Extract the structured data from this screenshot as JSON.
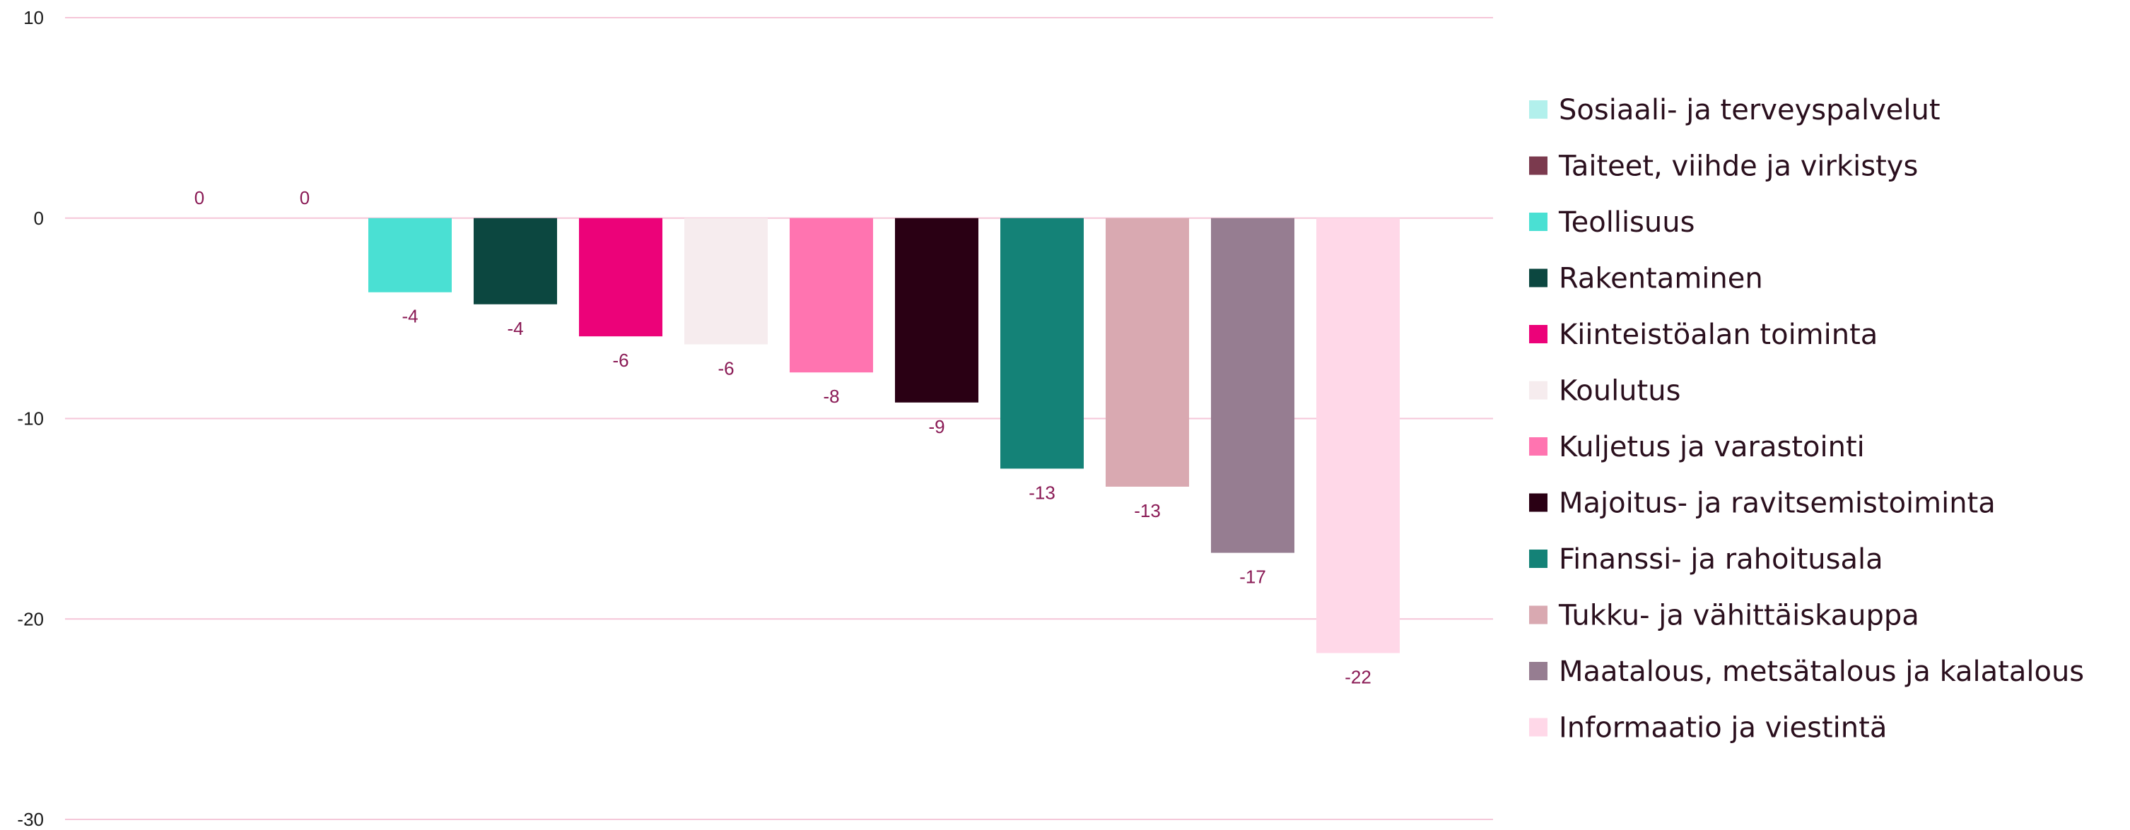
{
  "chart_data": {
    "type": "bar",
    "ylim": [
      -30,
      10
    ],
    "yticks": [
      10,
      0,
      -10,
      -20,
      -30
    ],
    "ytick_labels": [
      "10",
      "0",
      "-10",
      "-20",
      "-30"
    ],
    "gridlines": true,
    "legend_position": "right",
    "series": [
      {
        "name": "Sosiaali- ja terveyspalvelut",
        "value": 0,
        "label": "0",
        "color": "#b2f0ec"
      },
      {
        "name": "Taiteet, viihde ja virkistys",
        "value": 0,
        "label": "0",
        "color": "#7b3a4e"
      },
      {
        "name": "Teollisuus",
        "value": -3.7,
        "label": "-4",
        "color": "#4ae0d3"
      },
      {
        "name": "Rakentaminen",
        "value": -4.3,
        "label": "-4",
        "color": "#0c4740"
      },
      {
        "name": "Kiinteistöalan toiminta",
        "value": -5.9,
        "label": "-6",
        "color": "#ec0279"
      },
      {
        "name": "Koulutus",
        "value": -6.3,
        "label": "-6",
        "color": "#f6ecee"
      },
      {
        "name": "Kuljetus ja varastointi",
        "value": -7.7,
        "label": "-8",
        "color": "#ff74b0"
      },
      {
        "name": "Majoitus- ja ravitsemistoiminta",
        "value": -9.2,
        "label": "-9",
        "color": "#2a0014"
      },
      {
        "name": "Finanssi- ja rahoitusala",
        "value": -12.5,
        "label": "-13",
        "color": "#148277"
      },
      {
        "name": "Tukku- ja vähittäiskauppa",
        "value": -13.4,
        "label": "-13",
        "color": "#d9a9b1"
      },
      {
        "name": "Maatalous, metsätalous ja kalatalous",
        "value": -16.7,
        "label": "-17",
        "color": "#967d91"
      },
      {
        "name": "Informaatio ja viestintä",
        "value": -21.7,
        "label": "-22",
        "color": "#ffd8e8"
      }
    ]
  },
  "colors": {
    "gridline": "#f5c6d8",
    "data_label": "#8a1a55",
    "legend_text": "#2a0f1d"
  }
}
